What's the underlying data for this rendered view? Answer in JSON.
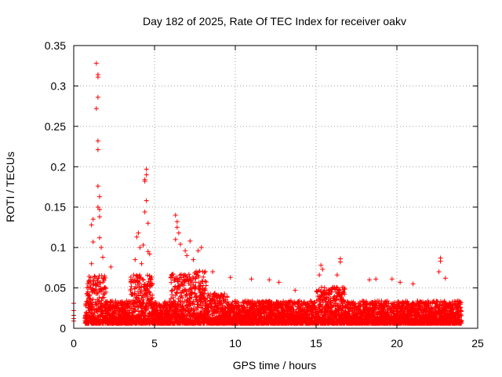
{
  "chart_data": {
    "type": "scatter",
    "title": "Day 182 of 2025, Rate Of TEC Index for receiver oakv",
    "xlabel": "GPS time / hours",
    "ylabel": "ROTI / TECUs",
    "xlim": [
      0,
      25
    ],
    "ylim": [
      0,
      0.35
    ],
    "xticks": [
      0,
      5,
      10,
      15,
      20,
      25
    ],
    "xtick_labels": [
      "0",
      "5",
      "10",
      "15",
      "20",
      "25"
    ],
    "yticks": [
      0,
      0.05,
      0.1,
      0.15,
      0.2,
      0.25,
      0.3,
      0.35
    ],
    "ytick_labels": [
      "0",
      "0.05",
      "0.1",
      "0.15",
      "0.2",
      "0.25",
      "0.3",
      "0.35"
    ],
    "grid": true,
    "marker": "plus",
    "colors": {
      "series": "#ff0000",
      "grid": "#a0a0a0",
      "frame": "#000000"
    },
    "series": [
      {
        "points": [
          [
            0.0,
            0.031
          ],
          [
            0.0,
            0.022
          ],
          [
            0.0,
            0.016
          ],
          [
            0.0,
            0.012
          ],
          [
            0.0,
            0.009
          ],
          [
            1.4,
            0.328
          ],
          [
            1.5,
            0.314
          ],
          [
            1.5,
            0.311
          ],
          [
            1.5,
            0.286
          ],
          [
            1.4,
            0.272
          ],
          [
            1.5,
            0.232
          ],
          [
            1.5,
            0.221
          ],
          [
            1.5,
            0.176
          ],
          [
            1.6,
            0.163
          ],
          [
            1.5,
            0.15
          ],
          [
            1.6,
            0.147
          ],
          [
            1.6,
            0.138
          ],
          [
            1.2,
            0.135
          ],
          [
            1.1,
            0.128
          ],
          [
            1.6,
            0.112
          ],
          [
            1.2,
            0.107
          ],
          [
            1.7,
            0.1
          ],
          [
            1.8,
            0.088
          ],
          [
            1.1,
            0.08
          ],
          [
            2.3,
            0.076
          ],
          [
            4.5,
            0.197
          ],
          [
            4.5,
            0.19
          ],
          [
            4.4,
            0.184
          ],
          [
            4.4,
            0.182
          ],
          [
            4.5,
            0.158
          ],
          [
            4.4,
            0.144
          ],
          [
            4.6,
            0.13
          ],
          [
            4.0,
            0.118
          ],
          [
            3.9,
            0.113
          ],
          [
            4.3,
            0.103
          ],
          [
            4.1,
            0.1
          ],
          [
            4.6,
            0.095
          ],
          [
            4.7,
            0.092
          ],
          [
            3.8,
            0.085
          ],
          [
            4.2,
            0.08
          ],
          [
            6.3,
            0.14
          ],
          [
            6.4,
            0.132
          ],
          [
            6.4,
            0.125
          ],
          [
            6.5,
            0.118
          ],
          [
            6.3,
            0.11
          ],
          [
            7.2,
            0.108
          ],
          [
            6.6,
            0.104
          ],
          [
            6.9,
            0.096
          ],
          [
            7.0,
            0.09
          ],
          [
            7.4,
            0.085
          ],
          [
            7.9,
            0.1
          ],
          [
            7.7,
            0.096
          ],
          [
            8.6,
            0.07
          ],
          [
            9.7,
            0.063
          ],
          [
            11.0,
            0.061
          ],
          [
            12.1,
            0.06
          ],
          [
            12.7,
            0.057
          ],
          [
            13.7,
            0.047
          ],
          [
            15.3,
            0.078
          ],
          [
            15.4,
            0.073
          ],
          [
            15.2,
            0.066
          ],
          [
            16.5,
            0.086
          ],
          [
            16.5,
            0.082
          ],
          [
            16.3,
            0.066
          ],
          [
            18.7,
            0.061
          ],
          [
            18.3,
            0.06
          ],
          [
            19.7,
            0.061
          ],
          [
            20.2,
            0.057
          ],
          [
            21.0,
            0.055
          ],
          [
            22.7,
            0.087
          ],
          [
            22.7,
            0.083
          ],
          [
            22.6,
            0.07
          ],
          [
            23.0,
            0.062
          ]
        ]
      }
    ]
  }
}
